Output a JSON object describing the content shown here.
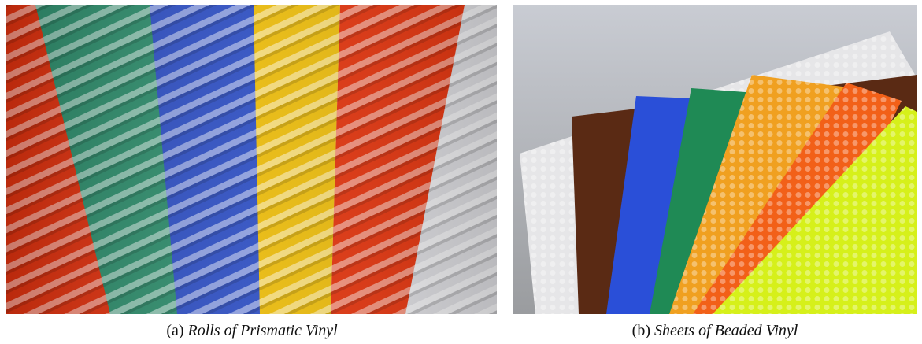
{
  "figures": [
    {
      "label": "(a)",
      "caption": "Rolls of Prismatic Vinyl"
    },
    {
      "label": "(b)",
      "caption": "Sheets of Beaded Vinyl"
    }
  ]
}
